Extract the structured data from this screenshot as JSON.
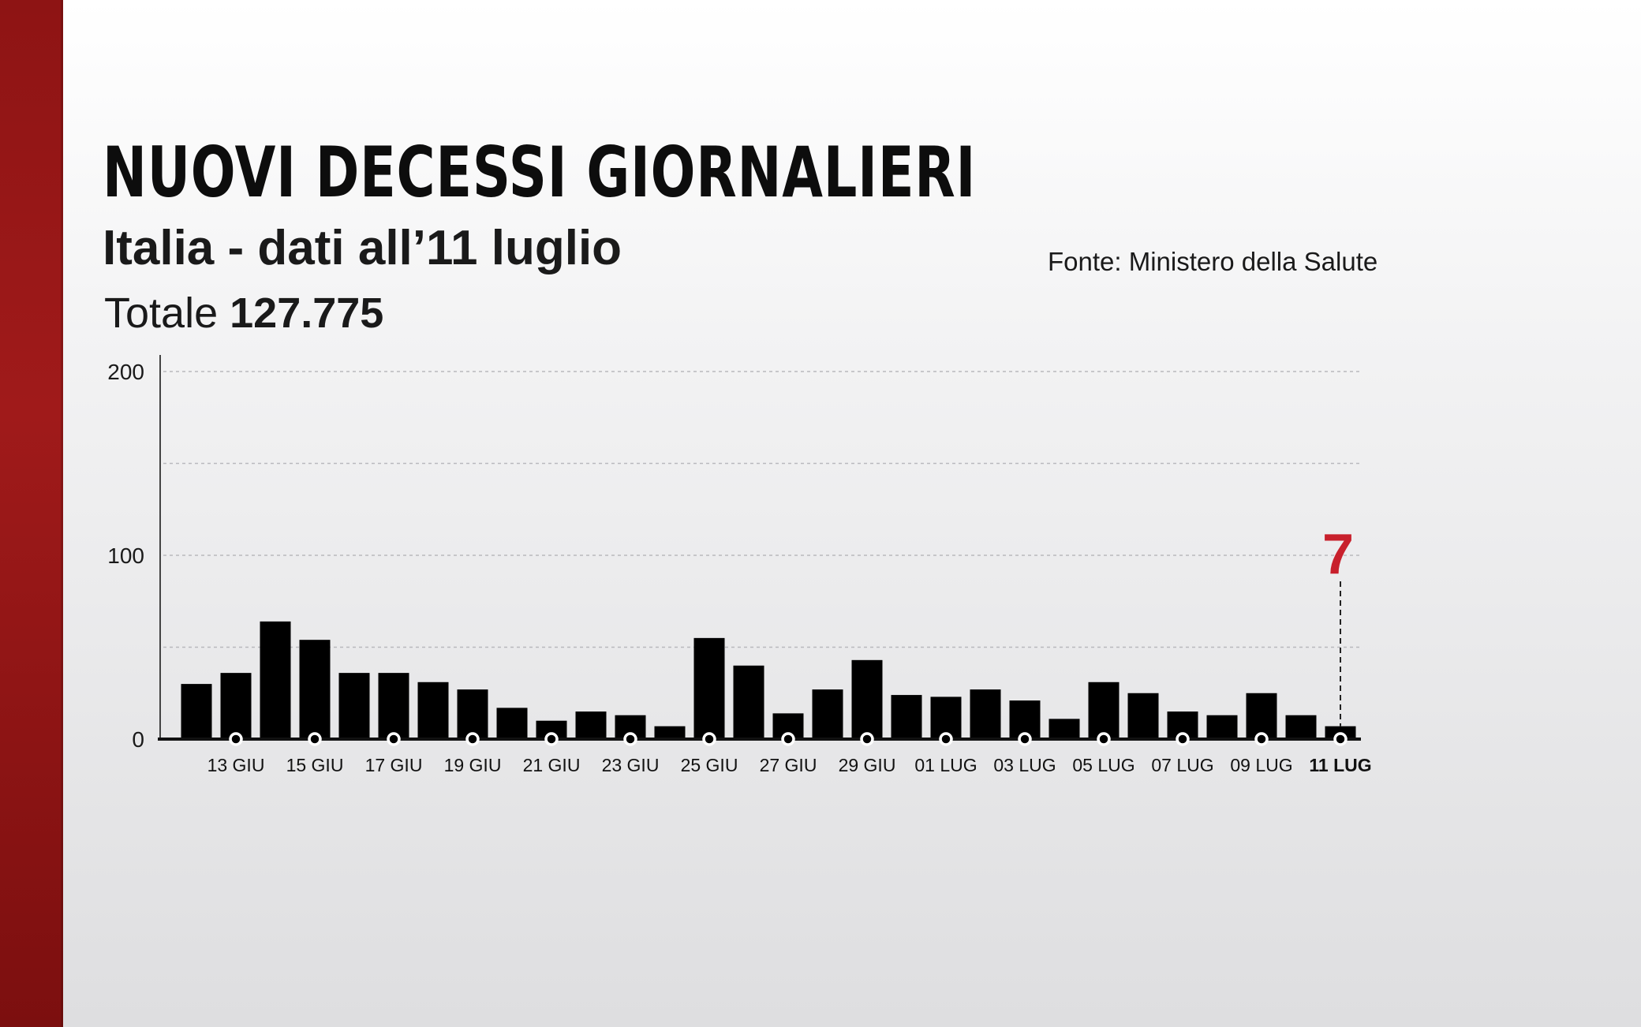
{
  "header": {
    "title": "NUOVI DECESSI GIORNALIERI",
    "subtitle": "Italia - dati all’11 luglio",
    "total_label": "Totale",
    "total_value": "127.775",
    "source": "Fonte: Ministero della Salute"
  },
  "colors": {
    "side_bar": "#9a1717",
    "bars": "#000000",
    "highlight": "#c8202c",
    "text": "#1a1a1a"
  },
  "chart_data": {
    "type": "bar",
    "title": "NUOVI DECESSI GIORNALIERI",
    "xlabel": "",
    "ylabel": "",
    "ylim": [
      0,
      200
    ],
    "y_ticks": [
      0,
      100,
      200
    ],
    "grid": true,
    "categories": [
      "12 GIU",
      "13 GIU",
      "14 GIU",
      "15 GIU",
      "16 GIU",
      "17 GIU",
      "18 GIU",
      "19 GIU",
      "20 GIU",
      "21 GIU",
      "22 GIU",
      "23 GIU",
      "24 GIU",
      "25 GIU",
      "26 GIU",
      "27 GIU",
      "28 GIU",
      "29 GIU",
      "30 GIU",
      "01 LUG",
      "02 LUG",
      "03 LUG",
      "04 LUG",
      "05 LUG",
      "06 LUG",
      "07 LUG",
      "08 LUG",
      "09 LUG",
      "10 LUG",
      "11 LUG"
    ],
    "values": [
      30,
      36,
      64,
      54,
      36,
      36,
      31,
      27,
      17,
      10,
      15,
      13,
      7,
      55,
      40,
      14,
      27,
      43,
      24,
      23,
      27,
      21,
      11,
      31,
      25,
      15,
      13,
      25,
      13,
      7
    ],
    "x_tick_labels": [
      "13 GIU",
      "15 GIU",
      "17 GIU",
      "19 GIU",
      "21 GIU",
      "23 GIU",
      "25 GIU",
      "27 GIU",
      "29 GIU",
      "01 LUG",
      "03 LUG",
      "05 LUG",
      "07 LUG",
      "09 LUG",
      "11 LUG"
    ],
    "highlight": {
      "label": "7",
      "category": "11 LUG"
    }
  }
}
